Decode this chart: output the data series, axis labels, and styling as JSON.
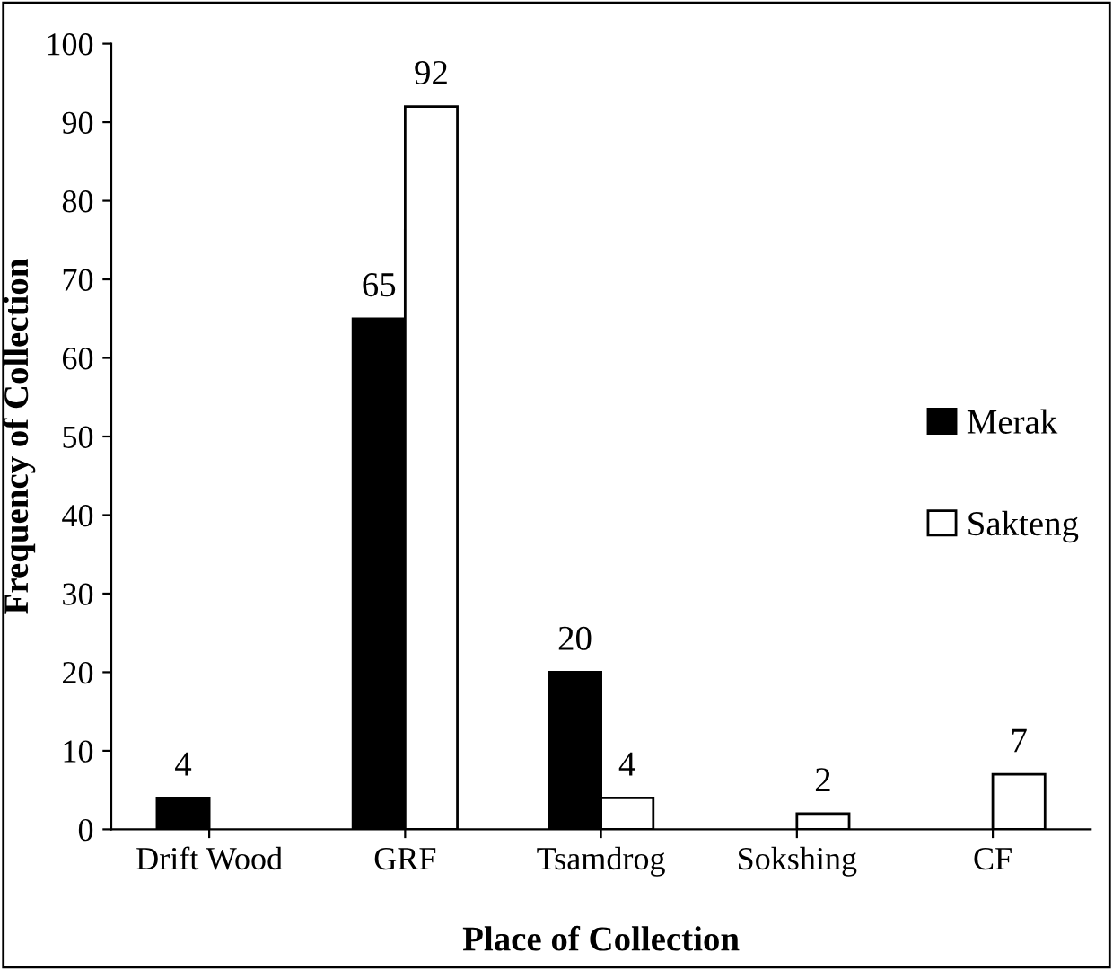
{
  "chart_data": {
    "type": "bar",
    "xlabel": "Place of Collection",
    "ylabel": "Frequency of Collection",
    "categories": [
      "Drift Wood",
      "GRF",
      "Tsamdrog",
      "Sokshing",
      "CF"
    ],
    "series": [
      {
        "name": "Merak",
        "color": "#000000",
        "values": [
          4,
          65,
          20,
          null,
          null
        ]
      },
      {
        "name": "Sakteng",
        "color": "#ffffff",
        "values": [
          null,
          92,
          4,
          2,
          7
        ]
      }
    ],
    "ylim": [
      0,
      100
    ],
    "yticks": [
      0,
      10,
      20,
      30,
      40,
      50,
      60,
      70,
      80,
      90,
      100
    ],
    "data_labels": true,
    "legend": "right",
    "grid": false
  }
}
